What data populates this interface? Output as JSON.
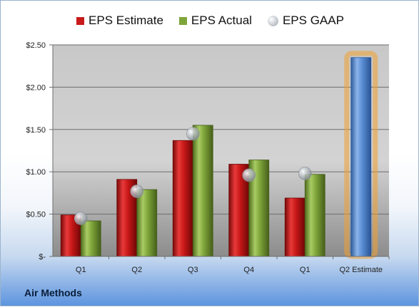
{
  "legend": {
    "estimate": "EPS Estimate",
    "actual": "EPS Actual",
    "gaap": "EPS GAAP"
  },
  "company": "Air Methods",
  "colors": {
    "estimate": "#c91a1a",
    "actual": "#7ea53a",
    "gaap": "#b9bec4",
    "projection": "#5b8fd6",
    "projection_glow": "#f0a030"
  },
  "chart_data": {
    "type": "bar",
    "categories": [
      "Q1",
      "Q2",
      "Q3",
      "Q4",
      "Q1",
      "Q2 Estimate"
    ],
    "series": [
      {
        "name": "EPS Estimate",
        "values": [
          0.49,
          0.91,
          1.37,
          1.09,
          0.69,
          2.35
        ]
      },
      {
        "name": "EPS Actual",
        "values": [
          0.42,
          0.79,
          1.55,
          1.14,
          0.97,
          null
        ]
      },
      {
        "name": "EPS GAAP",
        "values": [
          0.45,
          0.77,
          1.45,
          0.96,
          0.98,
          null
        ]
      }
    ],
    "ylim": [
      0,
      2.5
    ],
    "yticks": [
      0,
      0.5,
      1.0,
      1.5,
      2.0,
      2.5
    ],
    "ytick_labels": [
      "$-",
      "$0.50",
      "$1.00",
      "$1.50",
      "$2.00",
      "$2.50"
    ],
    "grid": true,
    "legend_position": "top"
  }
}
